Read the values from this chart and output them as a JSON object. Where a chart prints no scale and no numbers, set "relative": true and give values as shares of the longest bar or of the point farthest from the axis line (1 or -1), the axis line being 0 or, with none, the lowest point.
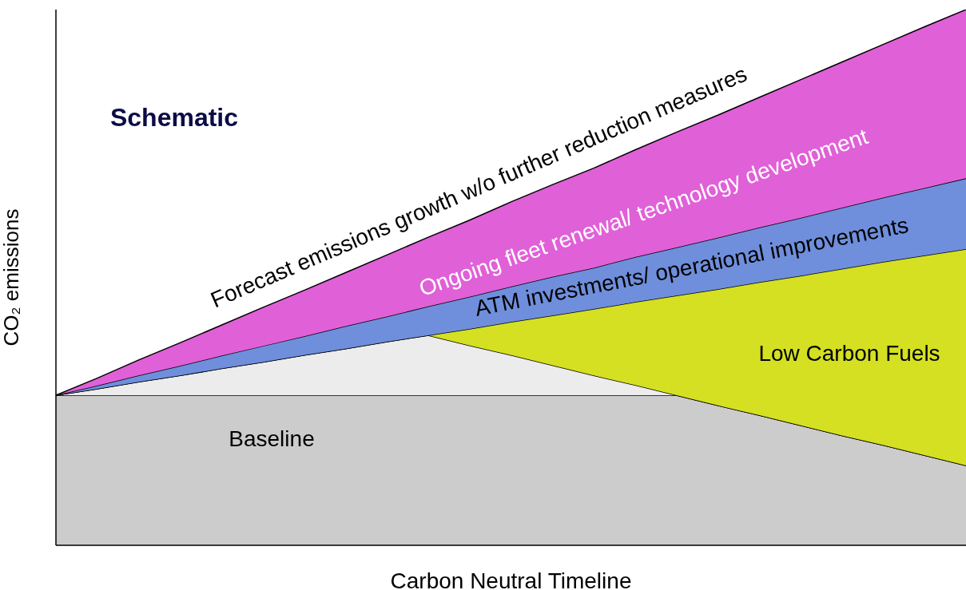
{
  "chart_data": {
    "type": "area",
    "relative": true,
    "stacked": true,
    "xlabel": "Carbon Neutral Timeline",
    "ylabel": "CO₂ emissions",
    "annotations": [
      "Schematic",
      "Forecast emissions growth w/o further reduction measures"
    ],
    "categories": [
      null,
      null,
      null,
      null,
      null,
      null,
      null,
      null,
      null,
      null,
      null,
      null,
      null,
      null,
      null,
      null,
      null,
      null,
      null,
      null,
      null,
      null,
      null
    ],
    "series": [
      {
        "name": "Baseline",
        "color": "#cccccc",
        "values": [
          0.28,
          0.28,
          0.28,
          0.28,
          0.28,
          0.28,
          0.28,
          0.28,
          0.28,
          0.28,
          0.28,
          0.28,
          0.28,
          0.28,
          0.28,
          0.28,
          0.261,
          0.243,
          0.224,
          0.205,
          0.187,
          0.168,
          0.149
        ]
      },
      {
        "color": "#ececec",
        "values": [
          0,
          0.012,
          0.025,
          0.037,
          0.05,
          0.062,
          0.075,
          0.087,
          0.1,
          0.112,
          0.093,
          0.075,
          0.056,
          0.037,
          0.019,
          0,
          0,
          0,
          0,
          0,
          0,
          0,
          0
        ]
      },
      {
        "name": "Low Carbon Fuels",
        "color": "#d4e021",
        "values": [
          0,
          0,
          0,
          0,
          0,
          0,
          0,
          0,
          0,
          0,
          0.031,
          0.062,
          0.093,
          0.124,
          0.155,
          0.186,
          0.217,
          0.248,
          0.279,
          0.311,
          0.342,
          0.373,
          0.404
        ]
      },
      {
        "name": "ATM investments/ operational improvements",
        "color": "#6f8fdc",
        "values": [
          0,
          0.006,
          0.012,
          0.018,
          0.024,
          0.03,
          0.035,
          0.042,
          0.047,
          0.054,
          0.06,
          0.066,
          0.072,
          0.077,
          0.084,
          0.09,
          0.096,
          0.102,
          0.108,
          0.114,
          0.12,
          0.126,
          0.132
        ]
      },
      {
        "name": "Ongoing fleet renewal/ technology development",
        "color": "#e060d8",
        "values": [
          0,
          0.014,
          0.029,
          0.043,
          0.057,
          0.072,
          0.086,
          0.1,
          0.115,
          0.129,
          0.143,
          0.158,
          0.172,
          0.186,
          0.2,
          0.215,
          0.229,
          0.243,
          0.258,
          0.272,
          0.286,
          0.301,
          0.315
        ]
      }
    ]
  }
}
